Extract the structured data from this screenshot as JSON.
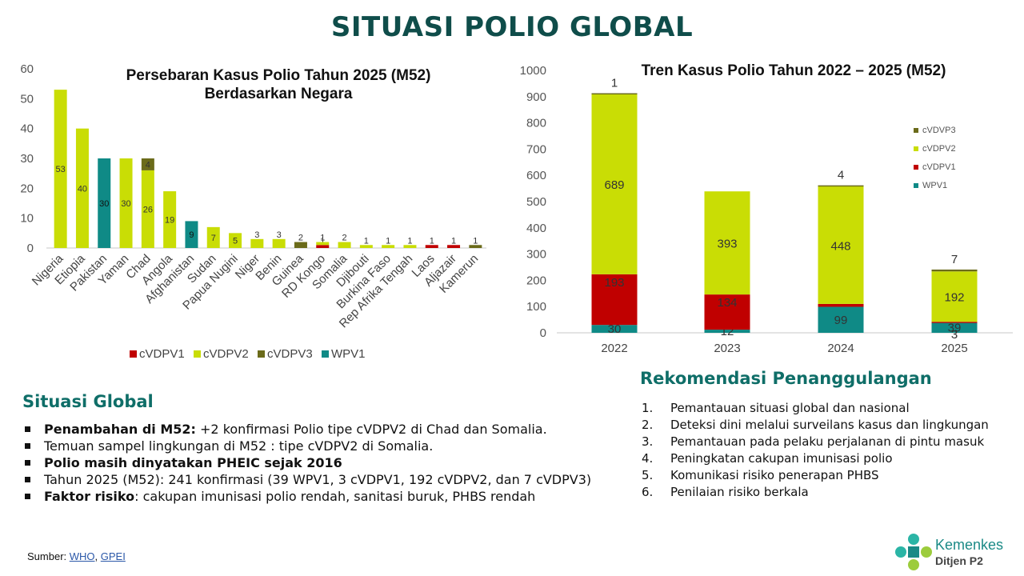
{
  "page_title": "SITUASI POLIO GLOBAL",
  "colors": {
    "cVDPV1": "#c00000",
    "cVDPV2": "#c9dd05",
    "cVDPV3": "#6b6b1a",
    "WPV1": "#0f8a86"
  },
  "chart_data": [
    {
      "type": "bar",
      "stacked": true,
      "title": [
        "Persebaran Kasus Polio Tahun 2025 (M52)",
        "Berdasarkan Negara"
      ],
      "categories": [
        "Nigeria",
        "Etiopia",
        "Pakistan",
        "Yaman",
        "Chad",
        "Angola",
        "Afghanistan",
        "Sudan",
        "Papua Nugini",
        "Niger",
        "Benin",
        "Guinea",
        "RD Kongo",
        "Somalia",
        "Djibouti",
        "Burkina Faso",
        "Rep Afrika Tengah",
        "Laos",
        "Aljazair",
        "Kamerun"
      ],
      "series": [
        {
          "name": "WPV1",
          "values": [
            0,
            0,
            30,
            0,
            0,
            0,
            9,
            0,
            0,
            0,
            0,
            0,
            0,
            0,
            0,
            0,
            0,
            0,
            0,
            0
          ]
        },
        {
          "name": "cVDPV1",
          "values": [
            0,
            0,
            0,
            0,
            0,
            0,
            0,
            0,
            0,
            0,
            0,
            0,
            1,
            0,
            0,
            0,
            0,
            1,
            1,
            0
          ]
        },
        {
          "name": "cVDPV2",
          "values": [
            53,
            40,
            0,
            30,
            26,
            19,
            0,
            7,
            5,
            3,
            3,
            0,
            1,
            2,
            1,
            1,
            1,
            0,
            0,
            0
          ]
        },
        {
          "name": "cVDPV3",
          "values": [
            0,
            0,
            0,
            0,
            4,
            0,
            0,
            0,
            0,
            0,
            0,
            2,
            0,
            0,
            0,
            0,
            0,
            0,
            0,
            1
          ]
        }
      ],
      "legend": [
        "cVDPV1",
        "cVDPV2",
        "cVDPV3",
        "WPV1"
      ],
      "legend_position": "bottom",
      "ylim": [
        0,
        60
      ],
      "yticks": [
        0,
        10,
        20,
        30,
        40,
        50,
        60
      ],
      "grid": false
    },
    {
      "type": "bar",
      "stacked": true,
      "title": "Tren Kasus Polio Tahun 2022 – 2025 (M52)",
      "categories": [
        "2022",
        "2023",
        "2024",
        "2025"
      ],
      "series": [
        {
          "name": "WPV1",
          "values": [
            30,
            12,
            99,
            39
          ]
        },
        {
          "name": "cVDPV1",
          "values": [
            193,
            134,
            11,
            3
          ]
        },
        {
          "name": "cVDPV2",
          "values": [
            689,
            393,
            448,
            192
          ]
        },
        {
          "name": "cVDVP3",
          "values": [
            1,
            0,
            4,
            7
          ]
        }
      ],
      "legend": [
        "cVDVP3",
        "cVDPV2",
        "cVDPV1",
        "WPV1"
      ],
      "legend_position": "right",
      "ylim": [
        0,
        1000
      ],
      "yticks": [
        0,
        100,
        200,
        300,
        400,
        500,
        600,
        700,
        800,
        900,
        1000
      ],
      "grid": false
    }
  ],
  "situasi_global": {
    "title": "Situasi Global",
    "items": [
      {
        "bold": "Penambahan di M52:",
        "text": " +2 konfirmasi Polio tipe cVDPV2 di Chad dan Somalia."
      },
      {
        "bold": "",
        "text": "Temuan sampel lingkungan  di M52 : tipe cVDPV2 di Somalia."
      },
      {
        "bold": "Polio masih dinyatakan PHEIC sejak 2016",
        "text": ""
      },
      {
        "bold": "",
        "text": "Tahun 2025 (M52): 241 konfirmasi (39 WPV1, 3 cVDPV1, 192 cVDPV2, dan 7 cVDPV3)"
      },
      {
        "bold": "Faktor risiko",
        "text": ": cakupan imunisasi polio rendah, sanitasi buruk, PHBS rendah"
      }
    ]
  },
  "rekomendasi": {
    "title": "Rekomendasi Penanggulangan",
    "items": [
      {
        "num": "1.",
        "text": "Pemantauan situasi global dan nasional"
      },
      {
        "num": "2.",
        "text": "Deteksi dini melalui surveilans kasus dan lingkungan"
      },
      {
        "num": "3.",
        "text": "Pemantauan pada pelaku perjalanan di pintu masuk"
      },
      {
        "num": "4.",
        "text": "Peningkatan cakupan imunisasi polio"
      },
      {
        "num": "5.",
        "text": "Komunikasi risiko penerapan PHBS"
      },
      {
        "num": "6.",
        "text": "Penilaian risiko berkala"
      }
    ]
  },
  "source": {
    "label": "Sumber: ",
    "links": [
      "WHO",
      "GPEI"
    ],
    "separator": ", "
  },
  "logo": {
    "name": "Kemenkes",
    "sub": "Ditjen P2",
    "icon": "kemenkes-logo-icon"
  }
}
